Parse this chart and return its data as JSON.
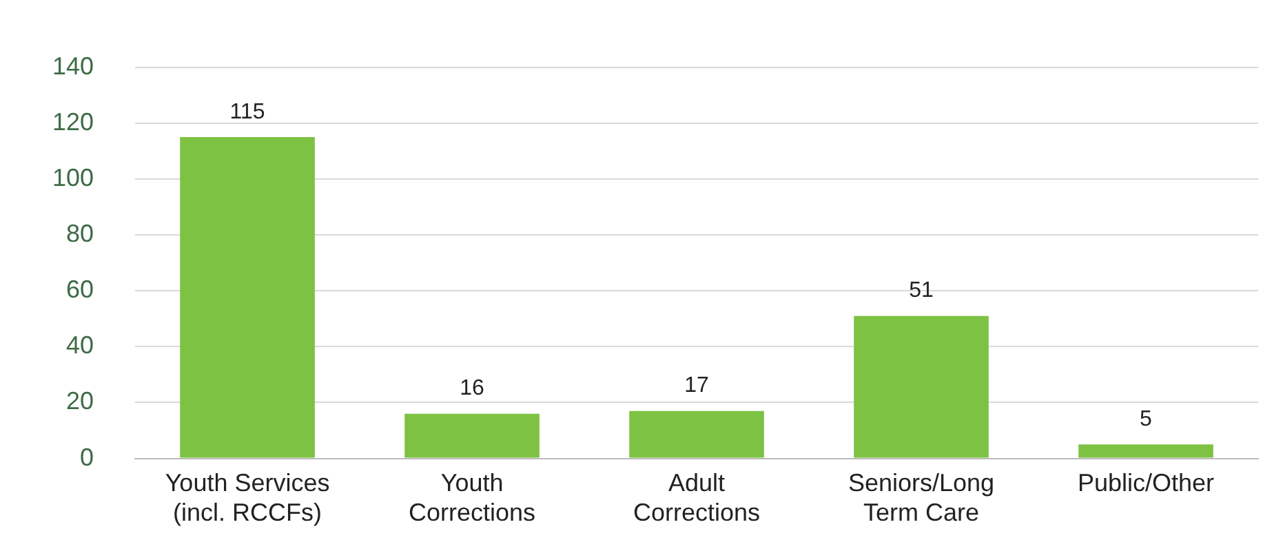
{
  "chart_data": {
    "type": "bar",
    "categories": [
      "Youth Services (incl. RCCFs)",
      "Youth Corrections",
      "Adult Corrections",
      "Seniors/Long Term Care",
      "Public/Other"
    ],
    "values": [
      115,
      16,
      17,
      51,
      5
    ],
    "color": "#7dc242",
    "ylim": [
      0,
      140
    ],
    "yticks": [
      0,
      20,
      40,
      60,
      80,
      100,
      120,
      140
    ],
    "grid": "y",
    "data_labels": true
  }
}
